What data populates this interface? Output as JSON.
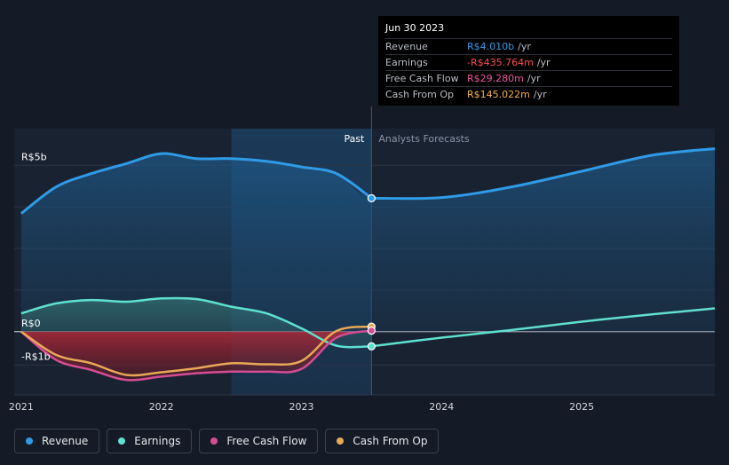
{
  "tooltip": {
    "date": "Jun 30 2023",
    "rows": [
      {
        "label": "Revenue",
        "value": "R$4.010b",
        "unit": "/yr",
        "color": "#2f9be6"
      },
      {
        "label": "Earnings",
        "value": "-R$435.764m",
        "unit": "/yr",
        "color": "#ff4d4d"
      },
      {
        "label": "Free Cash Flow",
        "value": "R$29.280m",
        "unit": "/yr",
        "color": "#e8559b"
      },
      {
        "label": "Cash From Op",
        "value": "R$145.022m",
        "unit": "/yr",
        "color": "#f5b041"
      }
    ]
  },
  "legend": [
    {
      "label": "Revenue",
      "color": "#2f9be6"
    },
    {
      "label": "Earnings",
      "color": "#5fe0cf"
    },
    {
      "label": "Free Cash Flow",
      "color": "#d44d93"
    },
    {
      "label": "Cash From Op",
      "color": "#e8a857"
    }
  ],
  "chart_data": {
    "type": "line",
    "title": "",
    "xlabel": "",
    "ylabel": "",
    "unit": "R$ billions",
    "xlim": [
      2020.95,
      2025.95
    ],
    "ylim": [
      -1.9,
      6.1
    ],
    "y_tick_labels": [
      {
        "value": 5,
        "label": "R$5b"
      },
      {
        "value": 0,
        "label": "R$0"
      },
      {
        "value": -1,
        "label": "-R$1b"
      }
    ],
    "x_tick_labels": [
      {
        "value": 2021,
        "label": "2021"
      },
      {
        "value": 2022,
        "label": "2022"
      },
      {
        "value": 2023,
        "label": "2023"
      },
      {
        "value": 2024,
        "label": "2024"
      },
      {
        "value": 2025,
        "label": "2025"
      }
    ],
    "divider_x": 2023.5,
    "past_label": "Past",
    "forecast_label": "Analysts Forecasts",
    "series": [
      {
        "name": "Revenue",
        "color": "#2f9be6",
        "x": [
          2021.0,
          2021.25,
          2021.5,
          2021.75,
          2022.0,
          2022.25,
          2022.5,
          2022.75,
          2023.0,
          2023.25,
          2023.5
        ],
        "values": [
          3.55,
          4.35,
          4.75,
          5.05,
          5.35,
          5.2,
          5.2,
          5.12,
          4.95,
          4.75,
          4.01
        ],
        "forecast_x": [
          2023.5,
          2024.0,
          2024.5,
          2025.0,
          2025.5,
          2025.95
        ],
        "forecast_values": [
          4.01,
          4.03,
          4.35,
          4.82,
          5.3,
          5.5
        ]
      },
      {
        "name": "Earnings",
        "color": "#5fe0cf",
        "x": [
          2021.0,
          2021.25,
          2021.5,
          2021.75,
          2022.0,
          2022.25,
          2022.5,
          2022.75,
          2023.0,
          2023.25,
          2023.5
        ],
        "values": [
          0.55,
          0.85,
          0.95,
          0.9,
          1.0,
          0.98,
          0.75,
          0.55,
          0.1,
          -0.42,
          -0.44
        ],
        "forecast_x": [
          2023.5,
          2024.0,
          2024.5,
          2025.0,
          2025.5,
          2025.95
        ],
        "forecast_values": [
          -0.44,
          -0.18,
          0.05,
          0.3,
          0.52,
          0.7
        ]
      },
      {
        "name": "Free Cash Flow",
        "color": "#d44d93",
        "x": [
          2021.0,
          2021.25,
          2021.5,
          2021.75,
          2022.0,
          2022.25,
          2022.5,
          2022.75,
          2023.0,
          2023.25,
          2023.5
        ],
        "values": [
          0.0,
          -0.85,
          -1.15,
          -1.45,
          -1.35,
          -1.25,
          -1.2,
          -1.2,
          -1.12,
          -0.18,
          0.03
        ]
      },
      {
        "name": "Cash From Op",
        "color": "#e8a857",
        "x": [
          2021.0,
          2021.25,
          2021.5,
          2021.75,
          2022.0,
          2022.25,
          2022.5,
          2022.75,
          2023.0,
          2023.25,
          2023.5
        ],
        "values": [
          0.0,
          -0.7,
          -0.95,
          -1.3,
          -1.22,
          -1.1,
          -0.95,
          -0.98,
          -0.88,
          0.02,
          0.15
        ]
      }
    ]
  }
}
